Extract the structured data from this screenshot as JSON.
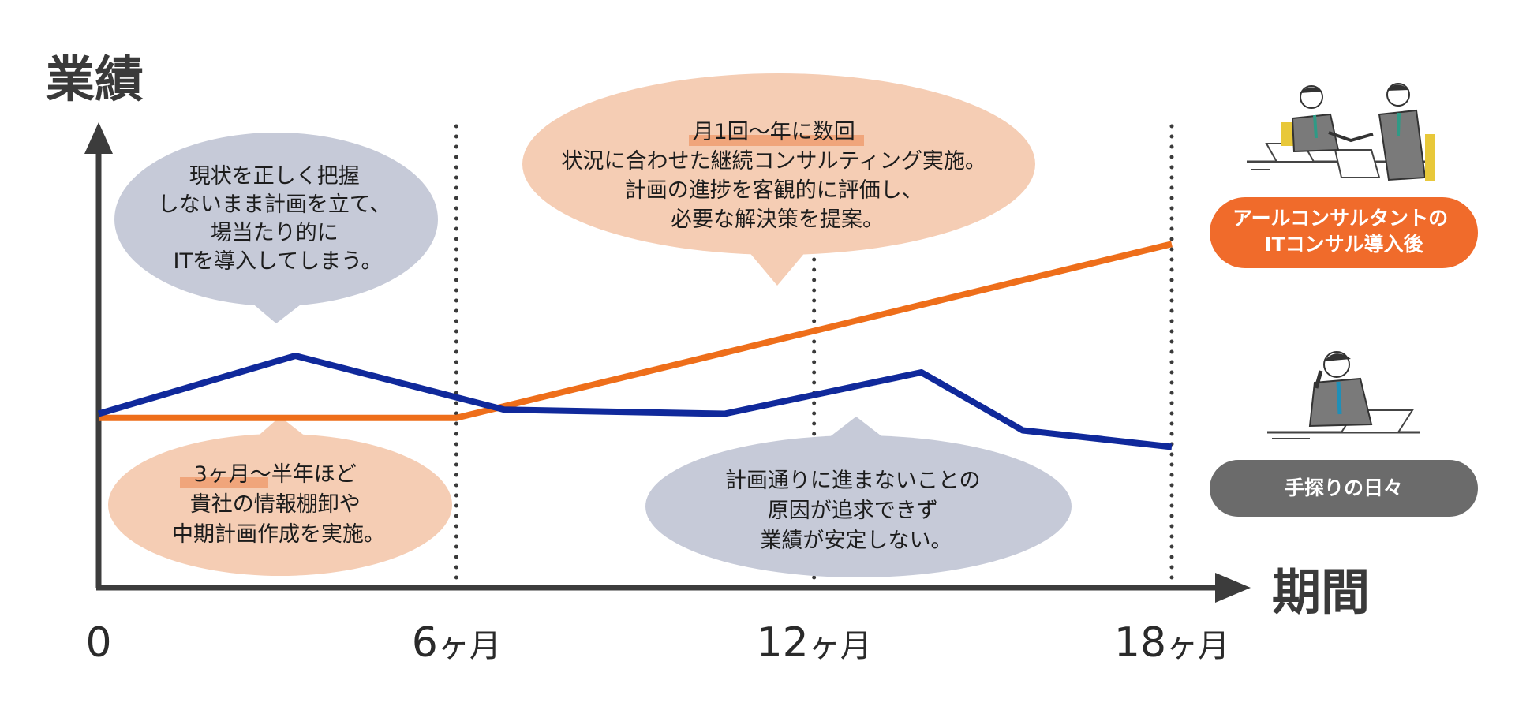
{
  "chart_data": {
    "type": "line",
    "ylabel": "業績",
    "xlabel": "期間",
    "x_ticks": [
      {
        "value": 0,
        "label": "0",
        "suffix": ""
      },
      {
        "value": 6,
        "label": "6",
        "suffix": "ヶ月"
      },
      {
        "value": 12,
        "label": "12",
        "suffix": "ヶ月"
      },
      {
        "value": 18,
        "label": "18",
        "suffix": "ヶ月"
      }
    ],
    "xlim": [
      0,
      18
    ],
    "ylim": [
      0,
      100
    ],
    "grid": "dotted vertical lines at 6, 12, 18 months",
    "series": [
      {
        "name": "アールコンサルタントのITコンサル導入後",
        "color": "#ee6e1a",
        "points": [
          [
            0,
            41
          ],
          [
            6,
            41
          ],
          [
            18,
            83
          ]
        ]
      },
      {
        "name": "手探りの日々",
        "color": "#10299b",
        "points": [
          [
            0,
            42
          ],
          [
            3.3,
            56
          ],
          [
            6.8,
            43
          ],
          [
            10.5,
            42
          ],
          [
            13.8,
            52
          ],
          [
            15.5,
            38
          ],
          [
            18,
            34
          ]
        ]
      }
    ],
    "legend": [
      {
        "label_lines": [
          "アールコンサルタントの",
          "ITコンサル導入後"
        ],
        "fill": "#f06b2b",
        "series": 0
      },
      {
        "label_lines": [
          "手探りの日々"
        ],
        "fill": "#6b6b6b",
        "series": 1
      }
    ],
    "callouts": [
      {
        "lines": [
          "現状を正しく把握",
          "しないまま計画を立て、",
          "場当たり的に",
          "ITを導入してしまう。"
        ],
        "fill": "#c6cad8"
      },
      {
        "lines": [
          "月1回～年に数回",
          "状況に合わせた継続コンサルティング実施。",
          "計画の進捗を客観的に評価し、",
          "必要な解決策を提案。"
        ],
        "fill": "#f5cdb4"
      },
      {
        "lines": [
          "3ヶ月～半年ほど",
          "貴社の情報棚卸や",
          "中期計画作成を実施。"
        ],
        "fill": "#f5cdb4"
      },
      {
        "lines": [
          "計画通りに進まないことの",
          "原因が追求できず",
          "業績が安定しない。"
        ],
        "fill": "#c6cad8"
      }
    ]
  }
}
